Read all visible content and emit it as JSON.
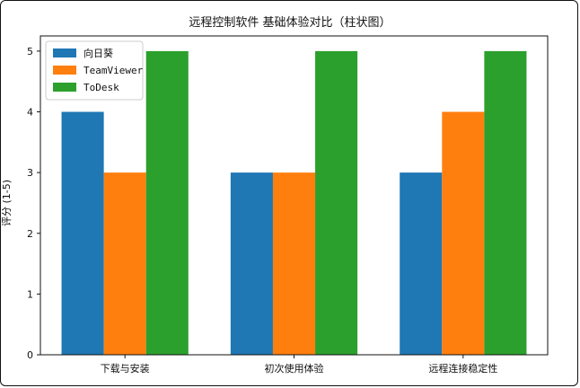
{
  "chart_data": {
    "type": "bar",
    "title": "远程控制软件 基础体验对比（柱状图）",
    "xlabel": "",
    "ylabel": "评分 (1-5)",
    "categories": [
      "下载与安装",
      "初次使用体验",
      "远程连接稳定性"
    ],
    "series": [
      {
        "name": "向日葵",
        "color": "#1f77b4",
        "values": [
          4,
          3,
          3
        ]
      },
      {
        "name": "TeamViewer",
        "color": "#ff7f0e",
        "values": [
          3,
          3,
          4
        ]
      },
      {
        "name": "ToDesk",
        "color": "#2ca02c",
        "values": [
          5,
          5,
          5
        ]
      }
    ],
    "ylim": [
      0,
      5.25
    ],
    "yticks": [
      0,
      1,
      2,
      3,
      4,
      5
    ],
    "grid": false,
    "legend_position": "top-left"
  }
}
